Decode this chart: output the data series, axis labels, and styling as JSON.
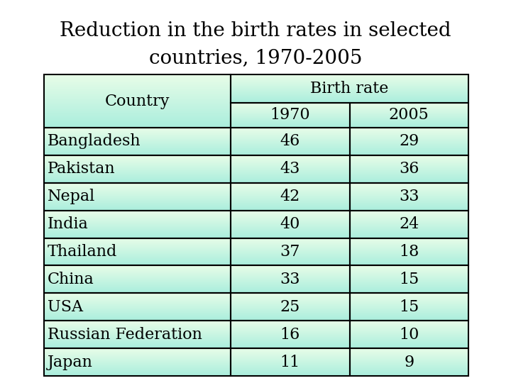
{
  "title_line1": "Reduction in the birth rates in selected",
  "title_line2": "countries, 1970-2005",
  "title_fontsize": 20,
  "rows": [
    [
      "Bangladesh",
      "46",
      "29"
    ],
    [
      "Pakistan",
      "43",
      "36"
    ],
    [
      "Nepal",
      "42",
      "33"
    ],
    [
      "India",
      "40",
      "24"
    ],
    [
      "Thailand",
      "37",
      "18"
    ],
    [
      "China",
      "33",
      "15"
    ],
    [
      "USA",
      "25",
      "15"
    ],
    [
      "Russian Federation",
      "16",
      "10"
    ],
    [
      "Japan",
      "11",
      "9"
    ]
  ],
  "header_bg": "#aaeedd",
  "cell_bg": "#ccf5e8",
  "border_color": "#000000",
  "text_color": "#000000",
  "font_family": "serif",
  "data_fontsize": 16,
  "header_fontsize": 16,
  "left_col_bg": "#ddfde8",
  "right_col_bg": "#aaf0e0"
}
